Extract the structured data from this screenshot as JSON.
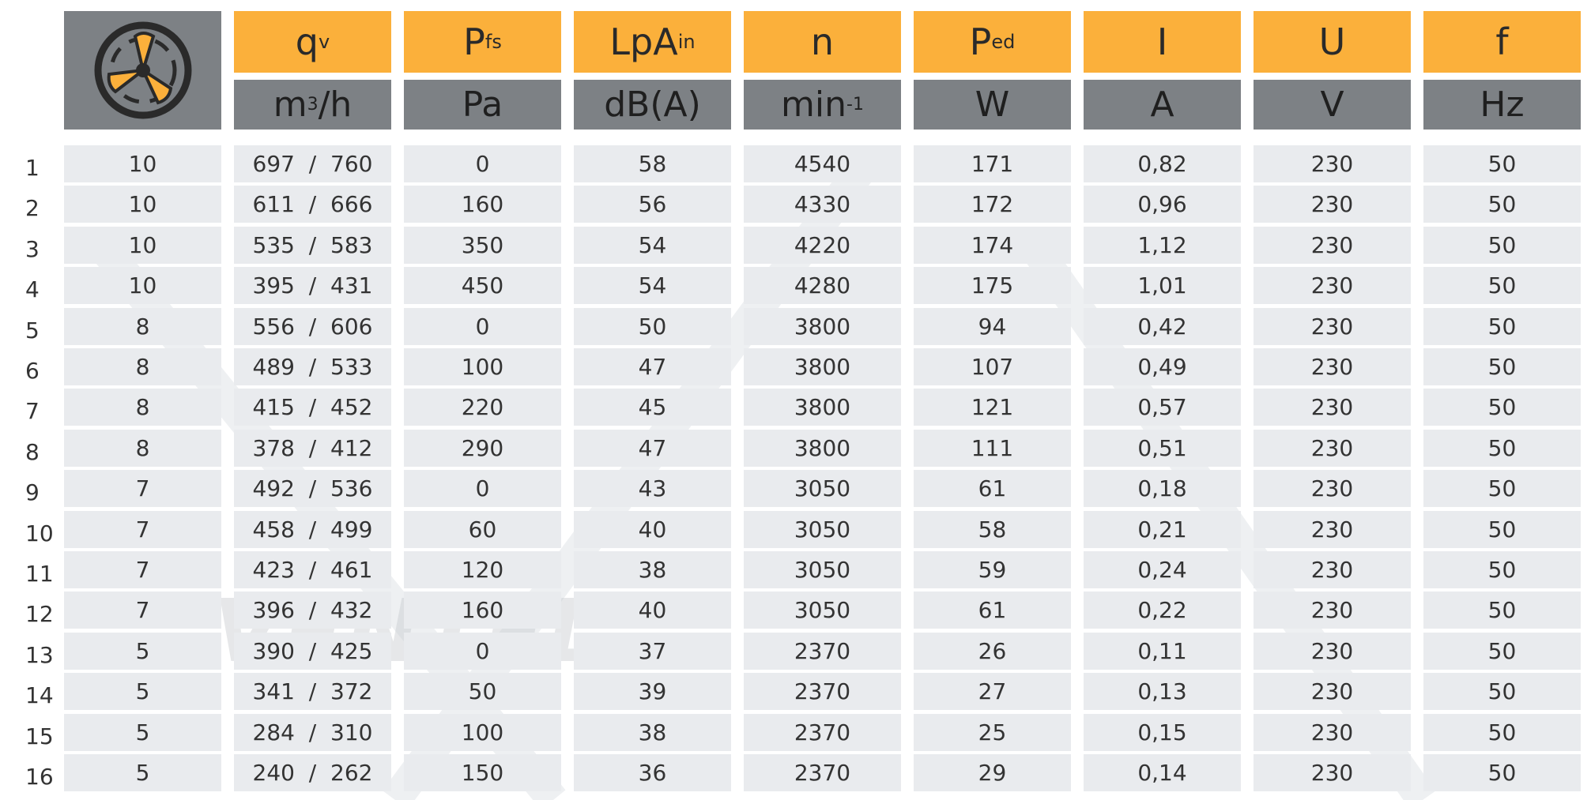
{
  "watermark": "VENTEL",
  "columns": [
    {
      "symbol": "q",
      "sub": "v",
      "unit": "m",
      "unit_sup": "3",
      "unit_after": "/h"
    },
    {
      "symbol": "P",
      "sub": "fs",
      "unit": "Pa"
    },
    {
      "symbol": "LpA",
      "sub": "in",
      "unit": "dB(A)"
    },
    {
      "symbol": "n",
      "unit": "min",
      "unit_sup": "-1"
    },
    {
      "symbol": "P",
      "sub": "ed",
      "unit": "W"
    },
    {
      "symbol": "I",
      "unit": "A"
    },
    {
      "symbol": "U",
      "unit": "V"
    },
    {
      "symbol": "f",
      "unit": "Hz"
    }
  ],
  "rows": [
    [
      "1",
      "10",
      "697  /  760",
      "0",
      "58",
      "4540",
      "171",
      "0,82",
      "230",
      "50"
    ],
    [
      "2",
      "10",
      "611  /  666",
      "160",
      "56",
      "4330",
      "172",
      "0,96",
      "230",
      "50"
    ],
    [
      "3",
      "10",
      "535  /  583",
      "350",
      "54",
      "4220",
      "174",
      "1,12",
      "230",
      "50"
    ],
    [
      "4",
      "10",
      "395  /  431",
      "450",
      "54",
      "4280",
      "175",
      "1,01",
      "230",
      "50"
    ],
    [
      "5",
      "8",
      "556  /  606",
      "0",
      "50",
      "3800",
      "94",
      "0,42",
      "230",
      "50"
    ],
    [
      "6",
      "8",
      "489  /  533",
      "100",
      "47",
      "3800",
      "107",
      "0,49",
      "230",
      "50"
    ],
    [
      "7",
      "8",
      "415  /  452",
      "220",
      "45",
      "3800",
      "121",
      "0,57",
      "230",
      "50"
    ],
    [
      "8",
      "8",
      "378  /  412",
      "290",
      "47",
      "3800",
      "111",
      "0,51",
      "230",
      "50"
    ],
    [
      "9",
      "7",
      "492  /  536",
      "0",
      "43",
      "3050",
      "61",
      "0,18",
      "230",
      "50"
    ],
    [
      "10",
      "7",
      "458  /  499",
      "60",
      "40",
      "3050",
      "58",
      "0,21",
      "230",
      "50"
    ],
    [
      "11",
      "7",
      "423  /  461",
      "120",
      "38",
      "3050",
      "59",
      "0,24",
      "230",
      "50"
    ],
    [
      "12",
      "7",
      "396  /  432",
      "160",
      "40",
      "3050",
      "61",
      "0,22",
      "230",
      "50"
    ],
    [
      "13",
      "5",
      "390  /  425",
      "0",
      "37",
      "2370",
      "26",
      "0,11",
      "230",
      "50"
    ],
    [
      "14",
      "5",
      "341  /  372",
      "50",
      "39",
      "2370",
      "27",
      "0,13",
      "230",
      "50"
    ],
    [
      "15",
      "5",
      "284  /  310",
      "100",
      "38",
      "2370",
      "25",
      "0,15",
      "230",
      "50"
    ],
    [
      "16",
      "5",
      "240  /  262",
      "150",
      "36",
      "2370",
      "29",
      "0,14",
      "230",
      "50"
    ]
  ]
}
